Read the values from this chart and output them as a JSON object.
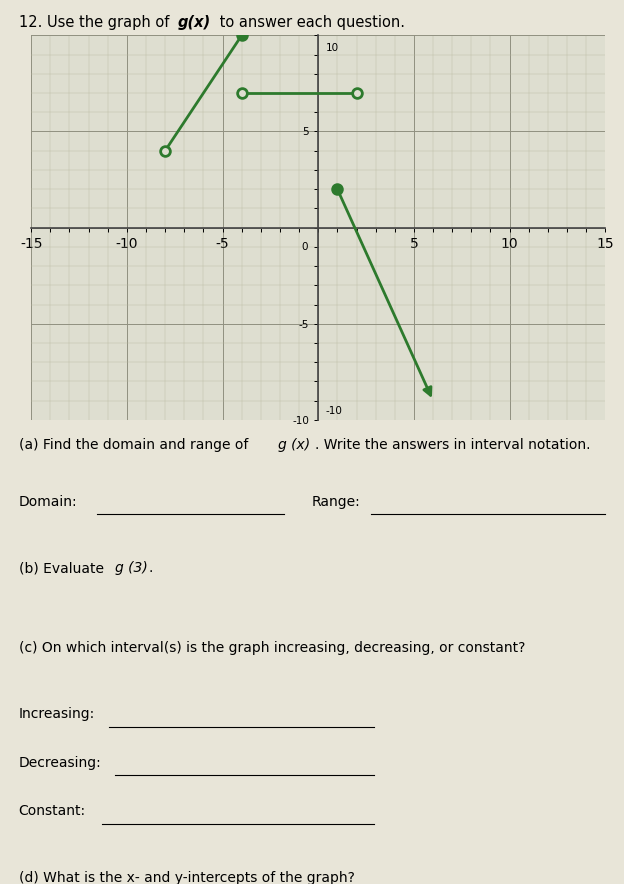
{
  "graph_bg": "#deded0",
  "page_bg": "#e8e5d8",
  "line_color": "#2d7a2d",
  "xlim": [
    -15,
    15
  ],
  "ylim": [
    -10,
    10
  ],
  "segments": [
    {
      "x": [
        -8,
        -4
      ],
      "y": [
        4,
        10
      ],
      "start_open": true,
      "end_closed": true
    },
    {
      "x": [
        -4,
        2
      ],
      "y": [
        7,
        7
      ],
      "start_open": true,
      "end_open": true
    },
    {
      "x": [
        1,
        6
      ],
      "y": [
        2,
        -9
      ],
      "start_closed": true,
      "has_arrow": true
    }
  ],
  "title_pre": "12. Use the graph of ",
  "title_bold": "g(x)",
  "title_post": " to answer each question.",
  "q_a_pre": "(a) Find the domain and range of ",
  "q_a_italic": "g (x)",
  "q_a_post": ". Write the answers in interval notation.",
  "q_b_pre": "(b) Evaluate ",
  "q_b_italic": "g (3)",
  "q_b_post": ".",
  "q_c": "(c) On which interval(s) is the graph increasing, decreasing, or constant?",
  "q_d": "(d) What is the x- and y-intercepts of the graph?"
}
